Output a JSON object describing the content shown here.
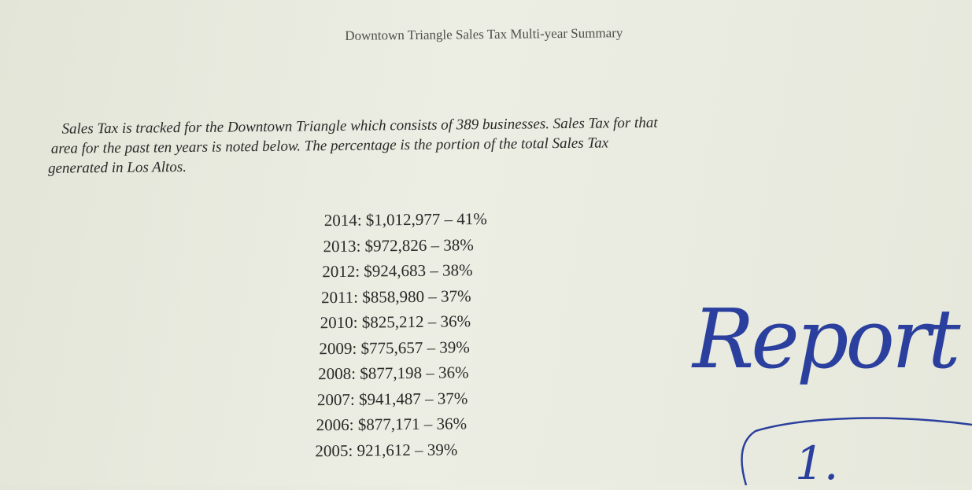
{
  "header": {
    "title": "Downtown Triangle Sales Tax Multi-year Summary"
  },
  "intro": {
    "lines": [
      "Sales Tax is tracked for the Downtown Triangle which consists of 389 businesses.  Sales Tax for that",
      "area for the past ten years is noted below.  The percentage is the portion of the total Sales Tax",
      "generated in Los Altos."
    ]
  },
  "summary": {
    "entries": [
      "2014: $1,012,977 – 41%",
      "2013: $972,826 – 38%",
      "2012: $924,683 – 38%",
      "2011: $858,980 – 37%",
      "2010: $825,212 – 36%",
      "2009: $775,657 – 39%",
      "2008: $877,198 – 36%",
      "2007: $941,487 – 37%",
      "2006: $877,171 – 36%",
      "2005: 921,612 – 39%"
    ]
  },
  "handwriting": {
    "word": "Report",
    "number": "1."
  }
}
